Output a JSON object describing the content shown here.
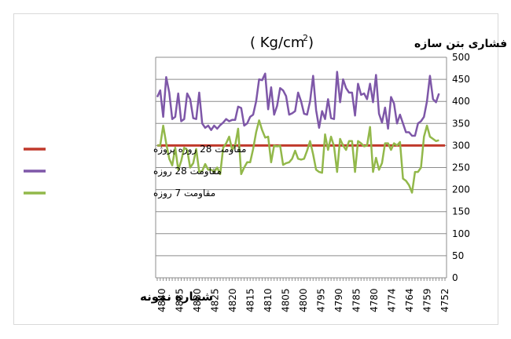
{
  "chart_data": {
    "type": "line",
    "title": "مقاومت فشاری بتن سازه",
    "title_unit": "( Kg/cm",
    "title_unit_sup": "2",
    "title_unit_close": " )",
    "xlabel": "شماره نمونه",
    "ylabel": "",
    "ylim": [
      0,
      500
    ],
    "yticks": [
      0,
      50,
      100,
      150,
      200,
      250,
      300,
      350,
      400,
      450,
      500
    ],
    "grid": "horizontal",
    "legend_position": "left",
    "x_order": "reversed",
    "xticks": [
      "4840",
      "4835",
      "4830",
      "4825",
      "4820",
      "4815",
      "4810",
      "4805",
      "4800",
      "4795",
      "4790",
      "4785",
      "4780",
      "4774",
      "4764",
      "4759",
      "4752"
    ],
    "n_points": 97,
    "series": [
      {
        "name": "مقاومت 28 روزه پروژه",
        "color": "#c0392b",
        "width": 3,
        "values": [
          300,
          300,
          300,
          300,
          300,
          300,
          300,
          300,
          300,
          300,
          300,
          300,
          300,
          300,
          300,
          300,
          300,
          300,
          300,
          300,
          300,
          300,
          300,
          300,
          300,
          300,
          300,
          300,
          300,
          300,
          300,
          300,
          300,
          300,
          300,
          300,
          300,
          300,
          300,
          300,
          300,
          300,
          300,
          300,
          300,
          300,
          300,
          300,
          300,
          300,
          300,
          300,
          300,
          300,
          300,
          300,
          300,
          300,
          300,
          300,
          300,
          300,
          300,
          300,
          300,
          300,
          300,
          300,
          300,
          300,
          300,
          300,
          300,
          300,
          300,
          300,
          300,
          300,
          300,
          300,
          300,
          300,
          300,
          300,
          300,
          300,
          300,
          300,
          300,
          300,
          300,
          300,
          300,
          300,
          300,
          300,
          300
        ]
      },
      {
        "name": "مقاومت 28 روزه",
        "color": "#7e57a8",
        "width": 2.5,
        "values": [
          410,
          425,
          365,
          455,
          420,
          360,
          365,
          418,
          355,
          360,
          418,
          405,
          362,
          360,
          420,
          350,
          340,
          345,
          335,
          345,
          338,
          346,
          352,
          360,
          355,
          358,
          358,
          388,
          385,
          345,
          350,
          365,
          370,
          400,
          450,
          448,
          463,
          382,
          432,
          370,
          390,
          430,
          425,
          412,
          370,
          373,
          378,
          420,
          400,
          372,
          370,
          400,
          458,
          380,
          340,
          378,
          360,
          405,
          362,
          360,
          467,
          398,
          450,
          430,
          420,
          420,
          368,
          440,
          415,
          418,
          405,
          440,
          398,
          460,
          372,
          352,
          386,
          338,
          410,
          395,
          350,
          370,
          350,
          330,
          330,
          322,
          322,
          350,
          355,
          365,
          400,
          458,
          405,
          398,
          418,
          0,
          0
        ]
      },
      {
        "name": "مقاومت 7 روزه",
        "color": "#92b84a",
        "width": 2.5,
        "values": [
          300,
          300,
          345,
          305,
          270,
          255,
          295,
          245,
          265,
          295,
          290,
          250,
          260,
          292,
          240,
          242,
          258,
          245,
          245,
          240,
          250,
          235,
          295,
          305,
          320,
          290,
          300,
          338,
          235,
          250,
          262,
          262,
          292,
          330,
          357,
          335,
          318,
          320,
          262,
          300,
          298,
          300,
          256,
          260,
          262,
          270,
          288,
          270,
          268,
          270,
          288,
          310,
          280,
          245,
          240,
          238,
          325,
          290,
          320,
          298,
          240,
          315,
          300,
          290,
          310,
          310,
          240,
          310,
          305,
          298,
          300,
          342,
          240,
          272,
          245,
          260,
          305,
          305,
          290,
          305,
          300,
          308,
          225,
          220,
          210,
          193,
          240,
          240,
          250,
          320,
          345,
          320,
          315,
          310,
          312,
          0,
          0
        ]
      }
    ]
  }
}
